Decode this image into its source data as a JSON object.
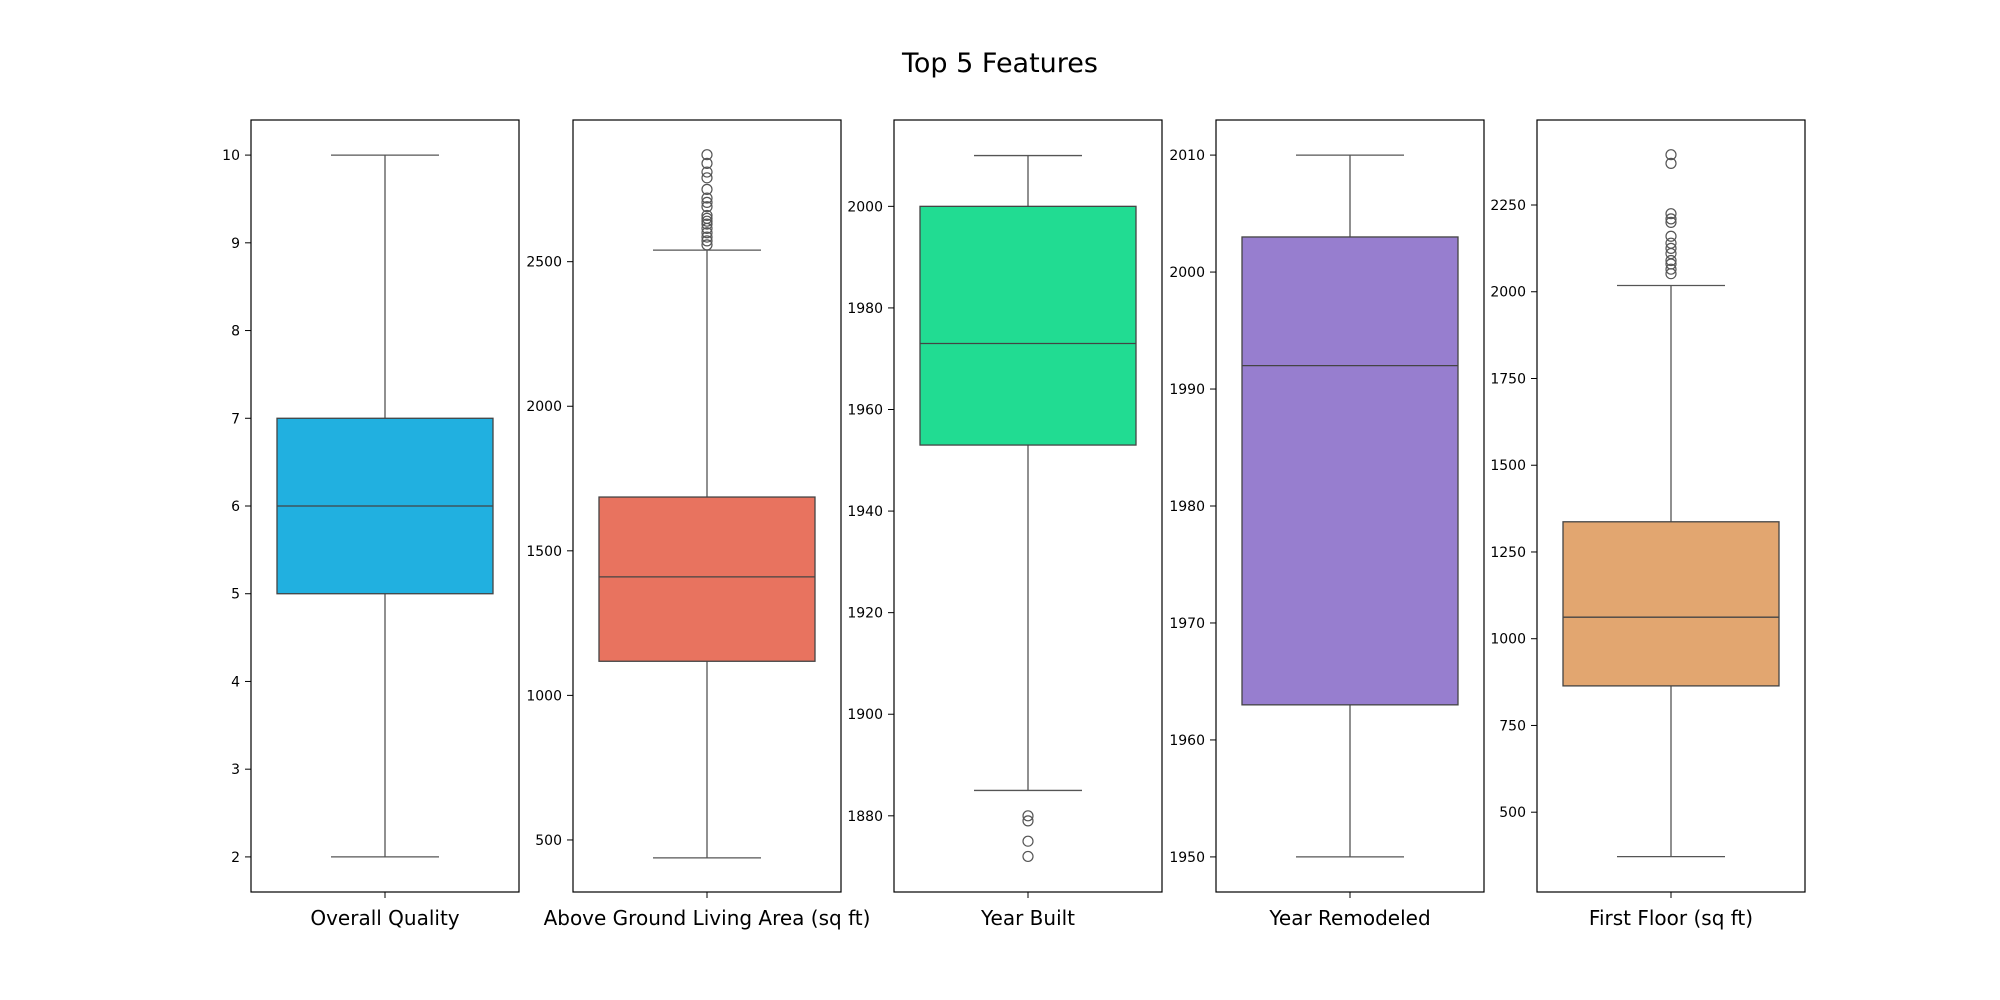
{
  "title": "Top 5 Features",
  "chart_data": [
    {
      "type": "box",
      "xlabel": "Overall Quality",
      "ylim": [
        1.6,
        10.4
      ],
      "yticks": [
        2,
        3,
        4,
        5,
        6,
        7,
        8,
        9,
        10
      ],
      "box_color": "#21b0e0",
      "box": {
        "whislo": 2,
        "q1": 5,
        "med": 6,
        "q3": 7,
        "whishi": 10
      },
      "fliers": []
    },
    {
      "type": "box",
      "xlabel": "Above Ground Living Area (sq ft)",
      "ylim": [
        320,
        2990
      ],
      "yticks": [
        500,
        1000,
        1500,
        2000,
        2500
      ],
      "box_color": "#e8735f",
      "box": {
        "whislo": 438,
        "q1": 1118,
        "med": 1410,
        "q3": 1686,
        "whishi": 2540
      },
      "fliers": [
        2558,
        2572,
        2585,
        2600,
        2615,
        2630,
        2640,
        2650,
        2660,
        2690,
        2705,
        2720,
        2750,
        2790,
        2810,
        2840,
        2870
      ]
    },
    {
      "type": "box",
      "xlabel": "Year Built",
      "ylim": [
        1865,
        2017
      ],
      "yticks": [
        1880,
        1900,
        1920,
        1940,
        1960,
        1980,
        2000
      ],
      "box_color": "#21dc92",
      "box": {
        "whislo": 1885,
        "q1": 1953,
        "med": 1973,
        "q3": 2000,
        "whishi": 2010
      },
      "fliers": [
        1872,
        1875,
        1879,
        1880
      ]
    },
    {
      "type": "box",
      "xlabel": "Year Remodeled",
      "ylim": [
        1947,
        2013
      ],
      "yticks": [
        1950,
        1960,
        1970,
        1980,
        1990,
        2000,
        2010
      ],
      "box_color": "#977ecf",
      "box": {
        "whislo": 1950,
        "q1": 1963,
        "med": 1992,
        "q3": 2003,
        "whishi": 2010
      },
      "fliers": []
    },
    {
      "type": "box",
      "xlabel": "First Floor (sq ft)",
      "ylim": [
        270,
        2495
      ],
      "yticks": [
        500,
        750,
        1000,
        1250,
        1500,
        1750,
        2000,
        2250
      ],
      "box_color": "#e2a670",
      "box": {
        "whislo": 372,
        "q1": 864,
        "med": 1062,
        "q3": 1337,
        "whishi": 2018
      },
      "fliers": [
        2052,
        2065,
        2080,
        2090,
        2110,
        2125,
        2140,
        2160,
        2200,
        2210,
        2225,
        2370,
        2395
      ]
    }
  ]
}
